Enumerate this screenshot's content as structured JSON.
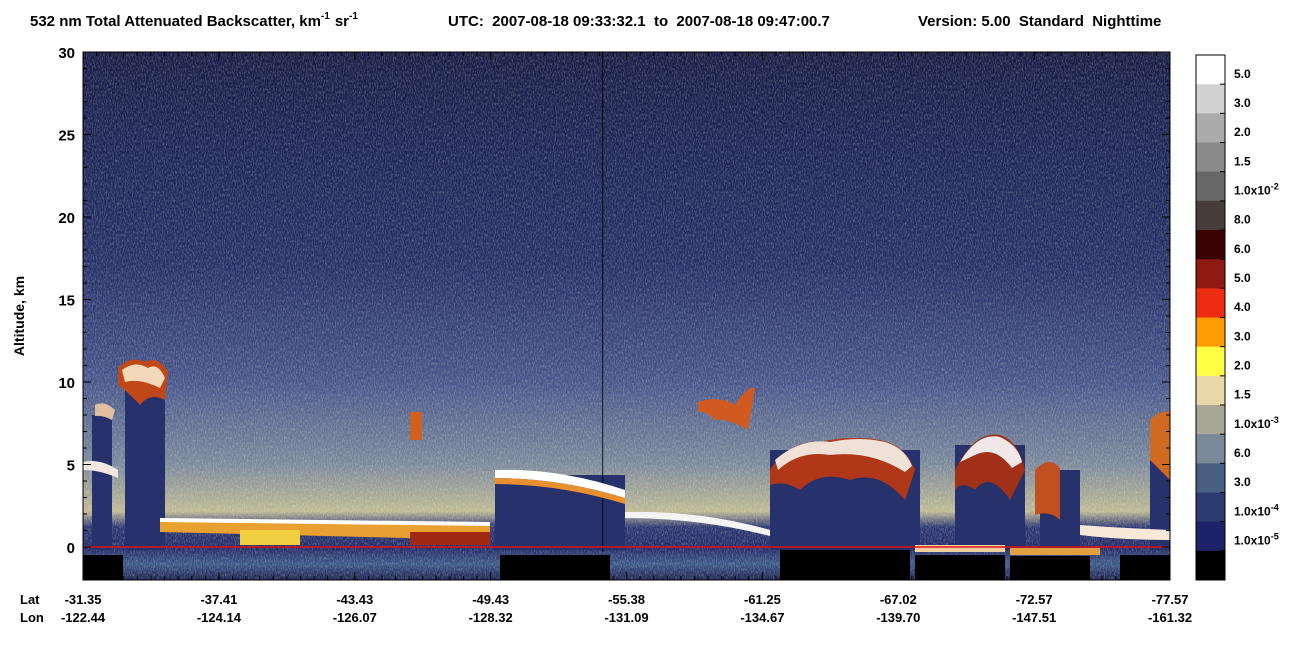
{
  "chart_data": {
    "type": "heatmap",
    "title": [
      "532 nm Total Attenuated Backscatter, km",
      "-1",
      "sr",
      "-1"
    ],
    "utc": "UTC:  2007-08-18 09:33:32.1  to  2007-08-18 09:47:00.7",
    "version": "Version: 5.00  Standard  Nighttime",
    "ylabel": "Altitude, km",
    "ylim": [
      -2,
      30
    ],
    "yticks": [
      0,
      5,
      10,
      15,
      20,
      25,
      30
    ],
    "x_rows": [
      "Lat",
      "Lon"
    ],
    "lat": [
      "-31.35",
      "-37.41",
      "-43.43",
      "-49.43",
      "-55.38",
      "-61.25",
      "-67.02",
      "-72.57",
      "-77.57"
    ],
    "lon": [
      "-122.44",
      "-124.14",
      "-126.07",
      "-128.32",
      "-131.09",
      "-134.67",
      "-139.70",
      "-147.51",
      "-161.32"
    ],
    "colorbar": {
      "colors": [
        "#ffffff",
        "#d2d2d2",
        "#ababab",
        "#8a8a8a",
        "#676767",
        "#473c38",
        "#3a0202",
        "#8c1a10",
        "#ee2c12",
        "#ff9c00",
        "#ffff44",
        "#e8d8a8",
        "#a8a898",
        "#7a8898",
        "#4a6082",
        "#2c3a72",
        "#1e2268",
        "#000000"
      ],
      "labels": [
        "5.0",
        "3.0",
        "2.0",
        "1.5",
        {
          "base": "1.0x10",
          "sup": "-2"
        },
        "8.0",
        "6.0",
        "5.0",
        "4.0",
        "3.0",
        "2.0",
        "1.5",
        {
          "base": "1.0x10",
          "sup": "-3"
        },
        "6.0",
        "3.0",
        {
          "base": "1.0x10",
          "sup": "-4"
        },
        {
          "base": "1.0x10",
          "sup": "-5"
        }
      ]
    }
  }
}
